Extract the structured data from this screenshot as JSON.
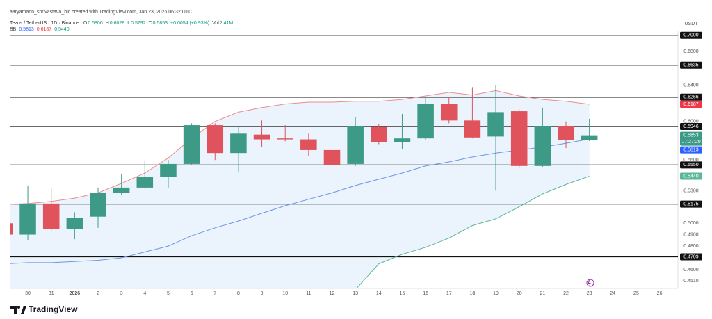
{
  "header": {
    "credit": "aaryamann_shrivastava_bic created with TradingView.com, Jan 23, 2026 06:32 UTC",
    "symbol": "Tezos / TetherUS · 1D · Binance",
    "legend": [
      {
        "key": "O",
        "text": "0.5800"
      },
      {
        "key": "H",
        "text": "0.6028"
      },
      {
        "key": "L",
        "text": "0.5792"
      },
      {
        "key": "C",
        "text": "0.5853"
      },
      {
        "text": "+0.0054 (+0.93%)"
      },
      {
        "key": "Vol",
        "text": "2.41M"
      }
    ],
    "legend_color": "#089981",
    "indicator": {
      "name": "BB",
      "values": [
        {
          "text": "0.5813",
          "color": "#2962ff"
        },
        {
          "text": "0.6187",
          "color": "#f23645"
        },
        {
          "text": "0.5440",
          "color": "#089981"
        }
      ]
    },
    "currency": "USDT"
  },
  "footer": {
    "brand": "TradingView"
  },
  "chart_data": {
    "type": "candlestick",
    "log": true,
    "grid": false,
    "categories": [
      null,
      "30",
      "31",
      "2026",
      "2",
      "3",
      "4",
      "5",
      "6",
      "7",
      "8",
      "9",
      "10",
      "11",
      "12",
      "13",
      "14",
      "15",
      "16",
      "17",
      "18",
      "19",
      "20",
      "21",
      "22",
      "23",
      "24",
      "25",
      "26"
    ],
    "ohlc": {
      "open": [
        0.5,
        0.49,
        0.518,
        0.495,
        0.506,
        0.528,
        0.533,
        0.543,
        0.556,
        0.596,
        0.567,
        0.586,
        0.582,
        0.581,
        0.57,
        0.556,
        0.594,
        0.578,
        0.582,
        0.619,
        0.601,
        0.584,
        0.611,
        0.554,
        0.595,
        0.58,
        null,
        null,
        null
      ],
      "high": [
        0.503,
        0.535,
        0.532,
        0.51,
        0.533,
        0.546,
        0.559,
        0.56,
        0.598,
        0.598,
        0.595,
        0.601,
        0.596,
        0.587,
        0.577,
        0.605,
        0.597,
        0.608,
        0.627,
        0.627,
        0.638,
        0.64,
        0.613,
        0.615,
        0.6,
        0.6028,
        null,
        null,
        null
      ],
      "low": [
        0.488,
        0.485,
        0.493,
        0.486,
        0.496,
        0.526,
        0.532,
        0.533,
        0.555,
        0.56,
        0.548,
        0.573,
        0.579,
        0.564,
        0.552,
        0.554,
        0.576,
        0.571,
        0.58,
        0.598,
        0.582,
        0.53,
        0.552,
        0.553,
        0.572,
        0.5792,
        null,
        null,
        null
      ],
      "close": [
        0.49,
        0.518,
        0.495,
        0.505,
        0.528,
        0.533,
        0.543,
        0.556,
        0.596,
        0.567,
        0.587,
        0.581,
        0.581,
        0.57,
        0.555,
        0.595,
        0.578,
        0.582,
        0.619,
        0.601,
        0.583,
        0.61,
        0.554,
        0.595,
        0.58,
        0.5853,
        null,
        null,
        null
      ]
    },
    "up_color": "#3d9a86",
    "down_color": "#e0525c",
    "series": [
      {
        "color": "#ef8a8a",
        "values": [
          0.517,
          0.518,
          0.52,
          0.523,
          0.528,
          0.537,
          0.547,
          0.562,
          0.582,
          0.6,
          0.61,
          0.615,
          0.619,
          0.621,
          0.621,
          0.622,
          0.622,
          0.624,
          0.628,
          0.632,
          0.629,
          0.634,
          0.628,
          0.624,
          0.622,
          0.6187,
          null,
          null,
          null
        ]
      },
      {
        "color": "#6b95e8",
        "values": [
          0.465,
          0.466,
          0.466,
          0.467,
          0.468,
          0.47,
          0.475,
          0.48,
          0.489,
          0.496,
          0.502,
          0.509,
          0.516,
          0.522,
          0.528,
          0.535,
          0.541,
          0.547,
          0.554,
          0.558,
          0.563,
          0.567,
          0.57,
          0.573,
          0.577,
          0.5813,
          null,
          null,
          null
        ]
      },
      {
        "color": "#5ab79a",
        "values": [
          null,
          null,
          null,
          null,
          null,
          null,
          null,
          null,
          null,
          null,
          null,
          null,
          null,
          null,
          null,
          0.444,
          0.465,
          0.473,
          0.479,
          0.487,
          0.498,
          0.504,
          0.515,
          0.527,
          0.536,
          0.544,
          null,
          null,
          null
        ]
      }
    ],
    "band_color": "#e6f1fb",
    "ylim": [
      0.445,
      0.705
    ],
    "yticks": [
      {
        "value": 0.68,
        "label": "0.6800"
      },
      {
        "value": 0.64,
        "label": "0.6400"
      },
      {
        "value": 0.6,
        "label": "0.6000"
      },
      {
        "value": 0.56,
        "label": "0.5600"
      },
      {
        "value": 0.53,
        "label": "0.5300"
      },
      {
        "value": 0.5,
        "label": "0.5000"
      },
      {
        "value": 0.49,
        "label": "0.4900"
      },
      {
        "value": 0.48,
        "label": "0.4800"
      },
      {
        "value": 0.46,
        "label": "0.4600"
      },
      {
        "value": 0.451,
        "label": "0.4510"
      }
    ],
    "levels": [
      {
        "value": 0.7,
        "label": "0.7000"
      },
      {
        "value": 0.6635,
        "label": "0.6635"
      },
      {
        "value": 0.6266,
        "label": "0.6266"
      },
      {
        "value": 0.5946,
        "label": "0.5946"
      },
      {
        "value": 0.555,
        "label": "0.5550"
      },
      {
        "value": 0.5175,
        "label": "0.5175"
      },
      {
        "value": 0.4709,
        "label": "0.4709"
      }
    ],
    "price_markers": [
      {
        "value": 0.6187,
        "label": "0.6187",
        "color": "#f23645"
      },
      {
        "value": 0.5853,
        "label": "0.5853",
        "color": "#3d9a86",
        "countdown": "17:27:20"
      },
      {
        "value": 0.5813,
        "label": "0.5813",
        "color": "#2962ff"
      },
      {
        "value": 0.544,
        "label": "0.5440",
        "color": "#5ab79a"
      }
    ]
  }
}
